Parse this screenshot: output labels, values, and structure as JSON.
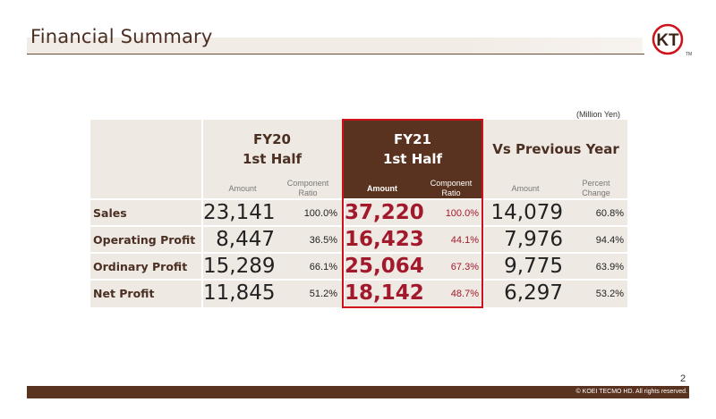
{
  "header": {
    "title": "Financial Summary",
    "logo_text": "KT",
    "logo_tm": "TM"
  },
  "unit_note": "(Million Yen)",
  "columns": [
    {
      "period_line1": "FY20",
      "period_line2": "1st Half",
      "amount_label": "Amount",
      "ratio_label_1": "Component",
      "ratio_label_2": "Ratio"
    },
    {
      "period_line1": "FY21",
      "period_line2": "1st Half",
      "amount_label": "Amount",
      "ratio_label_1": "Component",
      "ratio_label_2": "Ratio"
    },
    {
      "period_line1": "Vs Previous Year",
      "amount_label": "Amount",
      "ratio_label_1": "Percent",
      "ratio_label_2": "Change"
    }
  ],
  "rows": [
    {
      "label": "Sales",
      "fy20_amount": "23,141",
      "fy20_ratio": "100.0%",
      "fy21_amount": "37,220",
      "fy21_ratio": "100.0%",
      "yoy_amount": "14,079",
      "yoy_pct": "60.8%"
    },
    {
      "label": "Operating Profit",
      "fy20_amount": "8,447",
      "fy20_ratio": "36.5%",
      "fy21_amount": "16,423",
      "fy21_ratio": "44.1%",
      "yoy_amount": "7,976",
      "yoy_pct": "94.4%"
    },
    {
      "label": "Ordinary Profit",
      "fy20_amount": "15,289",
      "fy20_ratio": "66.1%",
      "fy21_amount": "25,064",
      "fy21_ratio": "67.3%",
      "yoy_amount": "9,775",
      "yoy_pct": "63.9%"
    },
    {
      "label": "Net Profit",
      "fy20_amount": "11,845",
      "fy20_ratio": "51.2%",
      "fy21_amount": "18,142",
      "fy21_ratio": "48.7%",
      "yoy_amount": "6,297",
      "yoy_pct": "53.2%"
    }
  ],
  "footer": {
    "page_number": "2",
    "copyright": "© KOEI TECMO HD. All rights reserved."
  },
  "colors": {
    "brand_brown": "#5a3320",
    "highlight_red": "#d0111b",
    "value_red": "#a3192c",
    "table_beige": "#efe9e3"
  }
}
